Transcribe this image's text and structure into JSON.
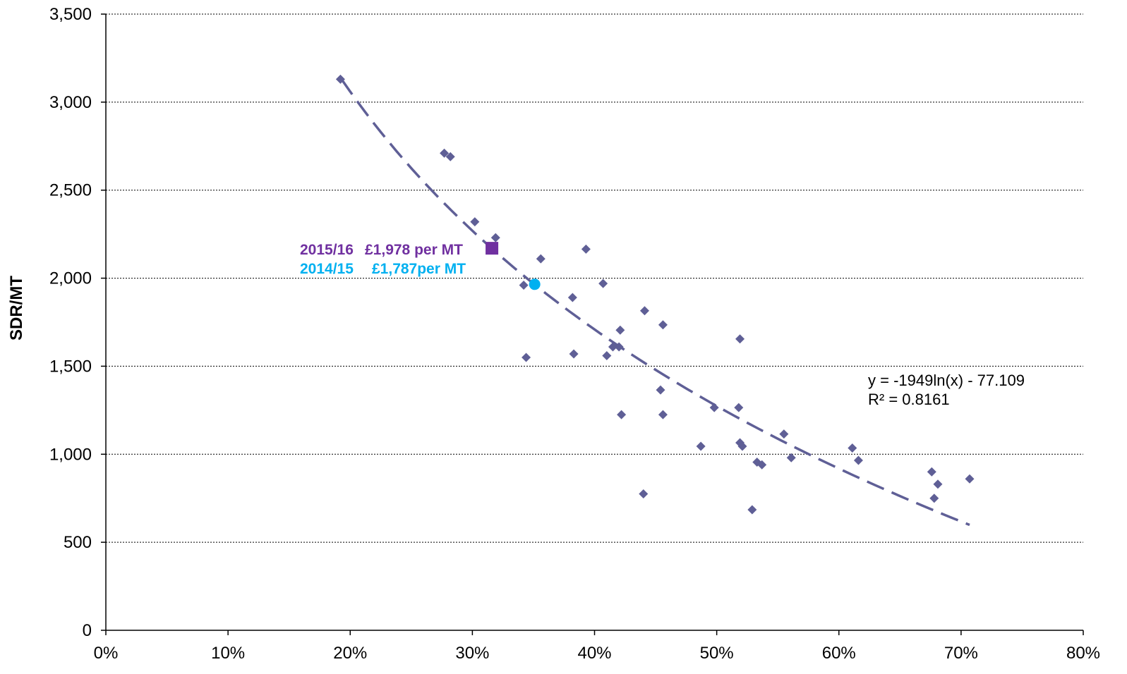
{
  "chart_data": {
    "type": "scatter",
    "ylabel": "SDR/MT",
    "xlabel": "",
    "xlim": [
      0,
      0.8
    ],
    "ylim": [
      0,
      3500
    ],
    "x_ticks": [
      0,
      0.1,
      0.2,
      0.3,
      0.4,
      0.5,
      0.6,
      0.7,
      0.8
    ],
    "x_tick_labels": [
      "0%",
      "10%",
      "20%",
      "30%",
      "40%",
      "50%",
      "60%",
      "70%",
      "80%"
    ],
    "y_ticks": [
      0,
      500,
      1000,
      1500,
      2000,
      2500,
      3000,
      3500
    ],
    "y_tick_labels": [
      "0",
      "500",
      "1,000",
      "1,500",
      "2,000",
      "2,500",
      "3,000",
      "3,500"
    ],
    "grid": "horizontal dotted",
    "series": [
      {
        "marker": "diamond",
        "color": "#5f5f96",
        "points": [
          [
            0.192,
            3130
          ],
          [
            0.277,
            2710
          ],
          [
            0.282,
            2690
          ],
          [
            0.302,
            2320
          ],
          [
            0.319,
            2230
          ],
          [
            0.342,
            1960
          ],
          [
            0.344,
            1550
          ],
          [
            0.356,
            2110
          ],
          [
            0.382,
            1890
          ],
          [
            0.383,
            1570
          ],
          [
            0.393,
            2165
          ],
          [
            0.407,
            1970
          ],
          [
            0.41,
            1560
          ],
          [
            0.415,
            1610
          ],
          [
            0.42,
            1610
          ],
          [
            0.421,
            1705
          ],
          [
            0.422,
            1225
          ],
          [
            0.44,
            775
          ],
          [
            0.441,
            1815
          ],
          [
            0.454,
            1365
          ],
          [
            0.456,
            1225
          ],
          [
            0.456,
            1735
          ],
          [
            0.487,
            1045
          ],
          [
            0.498,
            1265
          ],
          [
            0.518,
            1265
          ],
          [
            0.519,
            1655
          ],
          [
            0.519,
            1065
          ],
          [
            0.521,
            1045
          ],
          [
            0.529,
            685
          ],
          [
            0.533,
            955
          ],
          [
            0.537,
            940
          ],
          [
            0.555,
            1115
          ],
          [
            0.561,
            980
          ],
          [
            0.611,
            1035
          ],
          [
            0.616,
            965
          ],
          [
            0.676,
            900
          ],
          [
            0.678,
            750
          ],
          [
            0.681,
            830
          ],
          [
            0.707,
            860
          ]
        ]
      }
    ],
    "trendline": {
      "type": "log",
      "a": -1949,
      "b": -77.109,
      "x_from": 0.193,
      "x_to": 0.707,
      "color": "#5f5f96",
      "style": "dashed",
      "equation_label": "y = -1949ln(x) - 77.109",
      "r2_label": "R² = 0.8161"
    },
    "highlights": [
      {
        "x": 0.316,
        "y": 2170,
        "marker": "square",
        "color": "#7030a0",
        "year": "2015/16",
        "value": "£1,978 per MT"
      },
      {
        "x": 0.351,
        "y": 1965,
        "marker": "circle",
        "color": "#00b0f0",
        "year": "2014/15",
        "value": "£1,787per MT"
      }
    ]
  }
}
